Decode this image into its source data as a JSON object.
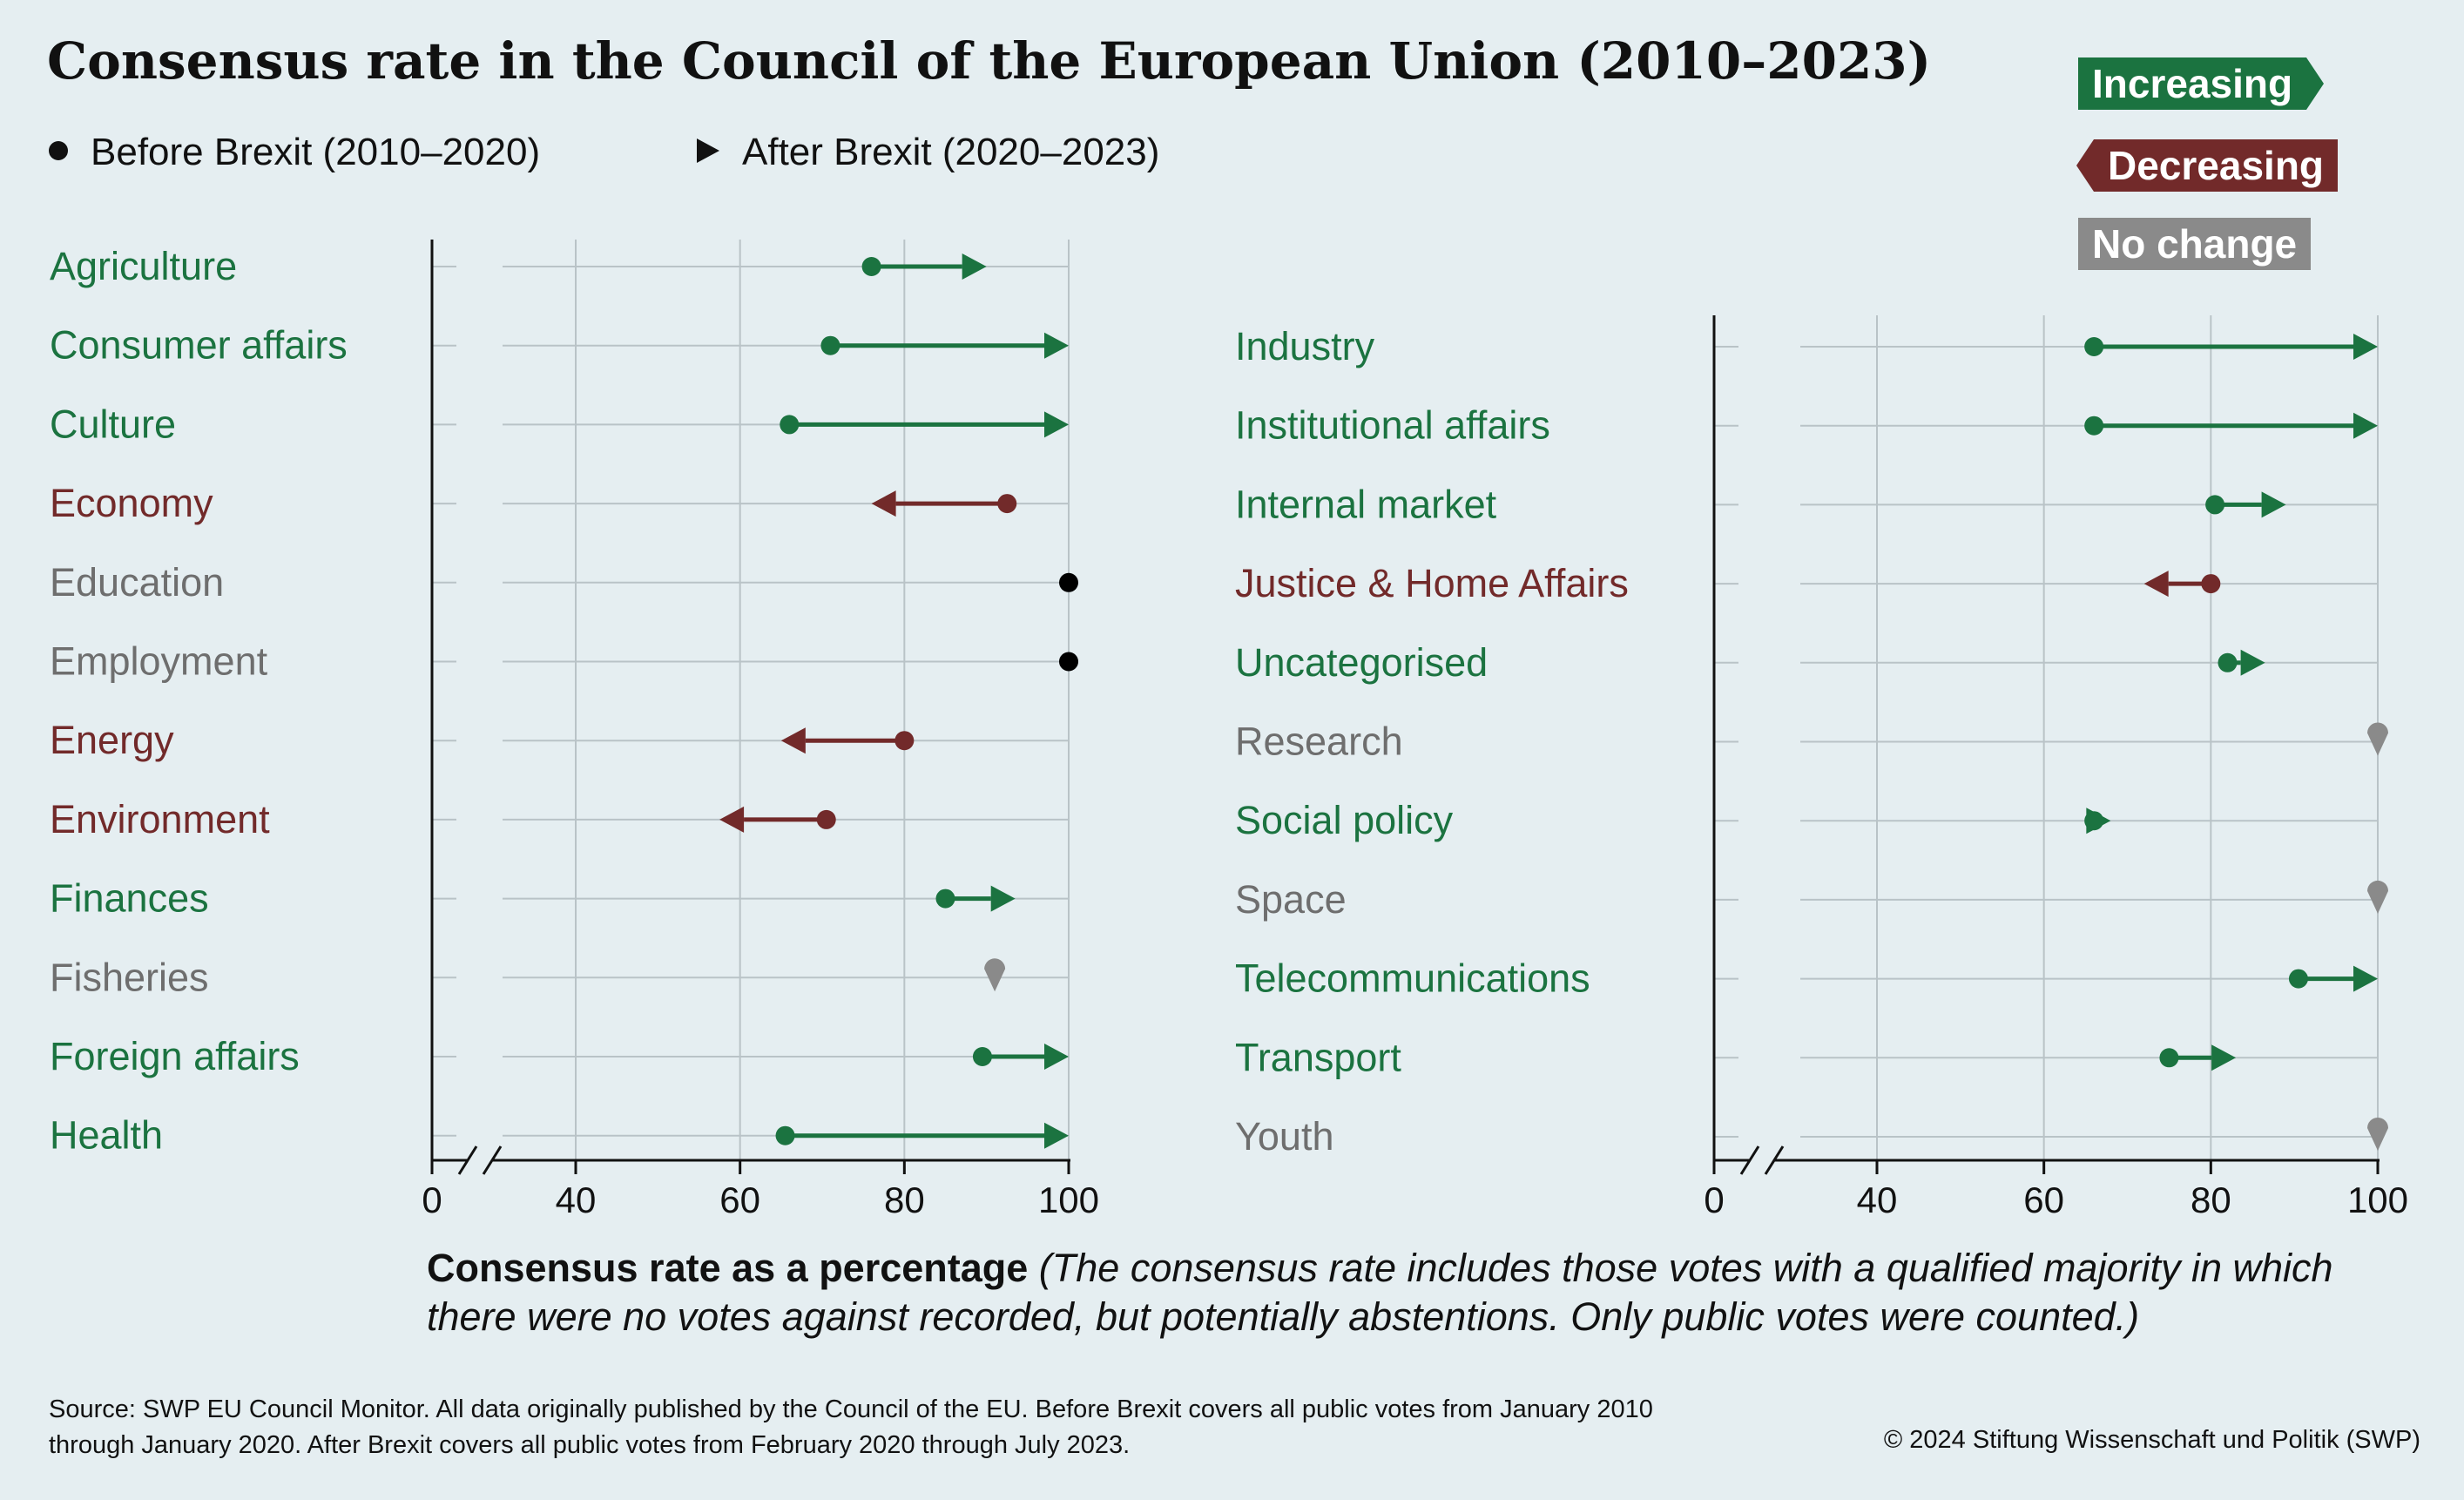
{
  "title": "Consensus rate in the Council of the European Union (2010–2023)",
  "legend": {
    "before": "Before Brexit (2010–2020)",
    "after": "After Brexit (2020–2023)"
  },
  "change_legend": {
    "increasing": "Increasing",
    "decreasing": "Decreasing",
    "no_change": "No change"
  },
  "colors": {
    "increasing": "#1b7340",
    "decreasing": "#722a2a",
    "no_change": "#8a8a8a",
    "same_100": "#000000",
    "background": "#e5eef1",
    "grid": "#b9c3c7"
  },
  "xlabel": {
    "bold": "Consensus rate as a percentage",
    "italic": " (The consensus rate includes those votes with a qualified majority in which there were no votes against recorded, but potentially abstentions. Only public votes were counted.)"
  },
  "source": "Source: SWP EU Council Monitor. All data originally published by the Council of the EU. Before Brexit covers all public votes from January 2010 through January 2020. After Brexit covers all public votes from February 2020 through July 2023.",
  "copyright": "© 2024 Stiftung Wissenschaft und Politik (SWP)",
  "chart_data": [
    {
      "type": "dumbbell",
      "x_ticks": [
        0,
        40,
        60,
        80,
        100
      ],
      "axis_break": true,
      "xlim": [
        0,
        100
      ],
      "rows": [
        {
          "category": "Agriculture",
          "before": 76,
          "after": 90,
          "change": "increasing"
        },
        {
          "category": "Consumer affairs",
          "before": 71,
          "after": 100,
          "change": "increasing"
        },
        {
          "category": "Culture",
          "before": 66,
          "after": 100,
          "change": "increasing"
        },
        {
          "category": "Economy",
          "before": 92.5,
          "after": 76,
          "change": "decreasing"
        },
        {
          "category": "Education",
          "before": 100,
          "after": 100,
          "change": "none_black"
        },
        {
          "category": "Employment",
          "before": 100,
          "after": 100,
          "change": "none_black"
        },
        {
          "category": "Energy",
          "before": 80,
          "after": 65,
          "change": "decreasing"
        },
        {
          "category": "Environment",
          "before": 70.5,
          "after": 57.5,
          "change": "decreasing"
        },
        {
          "category": "Finances",
          "before": 85,
          "after": 93.5,
          "change": "increasing"
        },
        {
          "category": "Fisheries",
          "before": 91,
          "after": 91,
          "change": "no_change"
        },
        {
          "category": "Foreign affairs",
          "before": 89.5,
          "after": 100,
          "change": "increasing"
        },
        {
          "category": "Health",
          "before": 65.5,
          "after": 100,
          "change": "increasing"
        }
      ]
    },
    {
      "type": "dumbbell",
      "x_ticks": [
        0,
        40,
        60,
        80,
        100
      ],
      "axis_break": true,
      "xlim": [
        0,
        100
      ],
      "rows": [
        {
          "category": "Industry",
          "before": 66,
          "after": 100,
          "change": "increasing"
        },
        {
          "category": "Institutional affairs",
          "before": 66,
          "after": 100,
          "change": "increasing"
        },
        {
          "category": "Internal market",
          "before": 80.5,
          "after": 89,
          "change": "increasing"
        },
        {
          "category": "Justice & Home Affairs",
          "before": 80,
          "after": 72,
          "change": "decreasing"
        },
        {
          "category": "Uncategorised",
          "before": 82,
          "after": 86.5,
          "change": "increasing"
        },
        {
          "category": "Research",
          "before": 100,
          "after": 100,
          "change": "no_change"
        },
        {
          "category": "Social policy",
          "before": 66,
          "after": 68,
          "change": "increasing"
        },
        {
          "category": "Space",
          "before": 100,
          "after": 100,
          "change": "no_change"
        },
        {
          "category": "Telecommunications",
          "before": 90.5,
          "after": 100,
          "change": "increasing"
        },
        {
          "category": "Transport",
          "before": 75,
          "after": 83,
          "change": "increasing"
        },
        {
          "category": "Youth",
          "before": 100,
          "after": 100,
          "change": "no_change"
        }
      ]
    }
  ]
}
